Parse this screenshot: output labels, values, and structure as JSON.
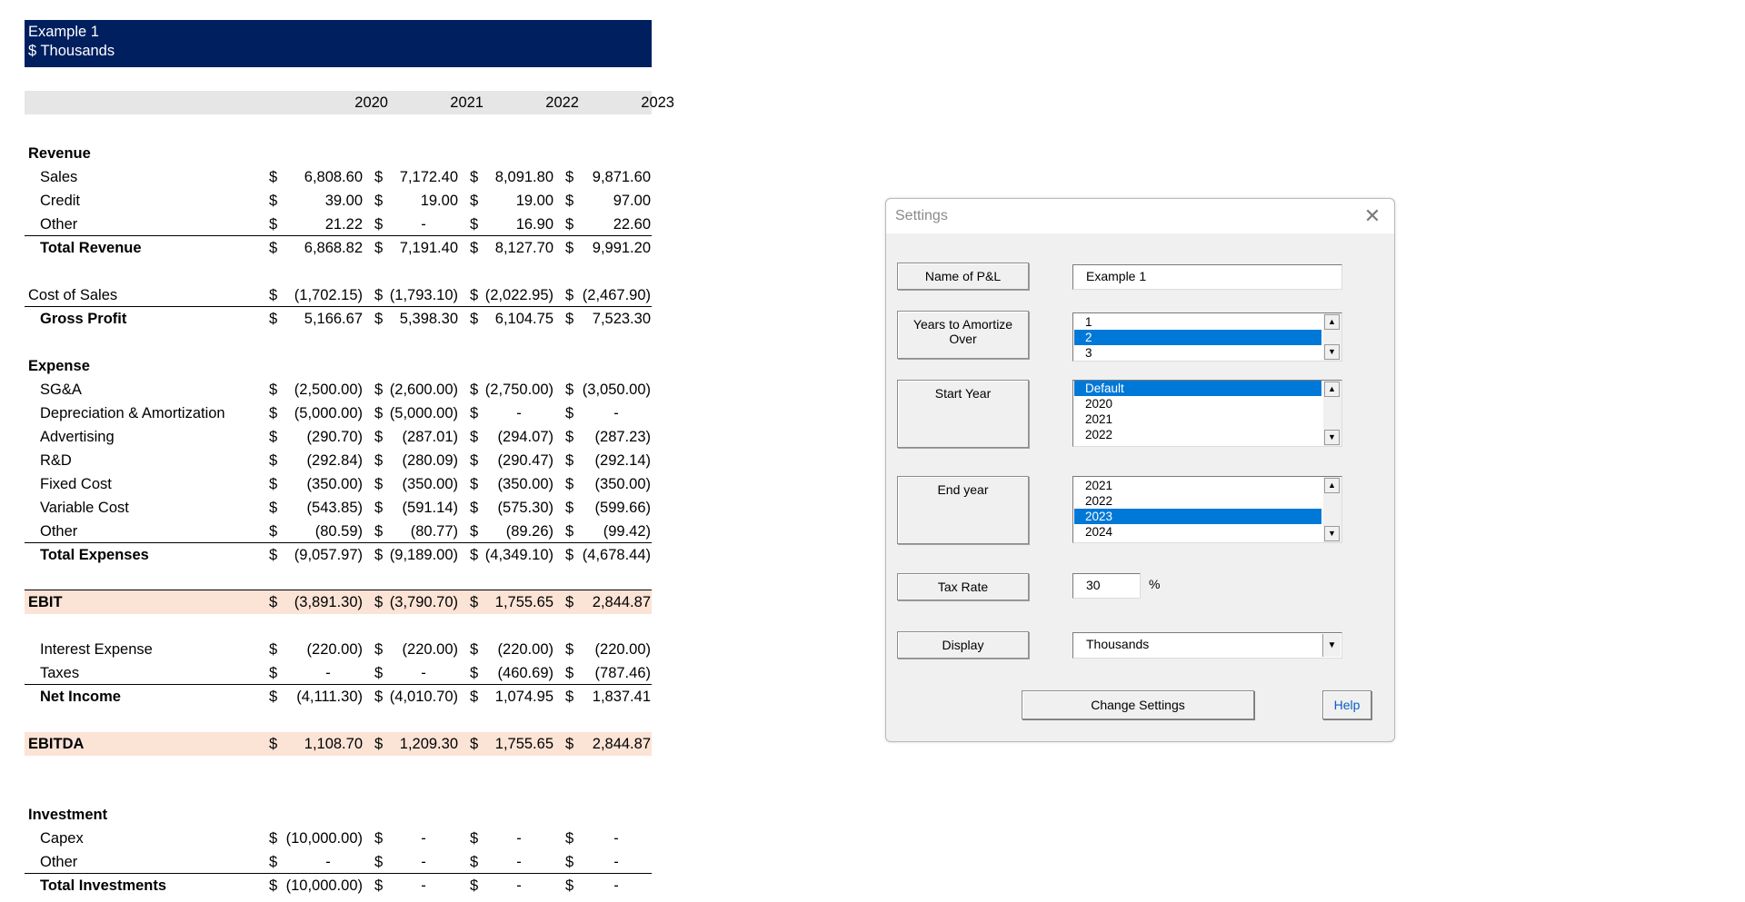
{
  "sheet": {
    "header": {
      "line1": "Example 1",
      "line2": "$ Thousands"
    },
    "years": [
      "2020",
      "2021",
      "2022",
      "2023"
    ],
    "sections": {
      "revenue": "Revenue",
      "expense": "Expense",
      "investment": "Investment"
    },
    "rows": {
      "sales": {
        "label": "Sales",
        "v": [
          "6,808.60",
          "7,172.40",
          "8,091.80",
          "9,871.60"
        ]
      },
      "credit": {
        "label": "Credit",
        "v": [
          "39.00",
          "19.00",
          "19.00",
          "97.00"
        ]
      },
      "other_rev": {
        "label": "Other",
        "v": [
          "21.22",
          "-",
          "16.90",
          "22.60"
        ]
      },
      "total_revenue": {
        "label": "Total Revenue",
        "v": [
          "6,868.82",
          "7,191.40",
          "8,127.70",
          "9,991.20"
        ]
      },
      "cost_of_sales": {
        "label": "Cost of Sales",
        "v": [
          "(1,702.15)",
          "(1,793.10)",
          "(2,022.95)",
          "(2,467.90)"
        ]
      },
      "gross_profit": {
        "label": "Gross Profit",
        "v": [
          "5,166.67",
          "5,398.30",
          "6,104.75",
          "7,523.30"
        ]
      },
      "sga": {
        "label": "SG&A",
        "v": [
          "(2,500.00)",
          "(2,600.00)",
          "(2,750.00)",
          "(3,050.00)"
        ]
      },
      "dep_amort": {
        "label": "Depreciation & Amortization",
        "v": [
          "(5,000.00)",
          "(5,000.00)",
          "-",
          "-"
        ]
      },
      "advertising": {
        "label": "Advertising",
        "v": [
          "(290.70)",
          "(287.01)",
          "(294.07)",
          "(287.23)"
        ]
      },
      "rnd": {
        "label": "R&D",
        "v": [
          "(292.84)",
          "(280.09)",
          "(290.47)",
          "(292.14)"
        ]
      },
      "fixed_cost": {
        "label": "Fixed Cost",
        "v": [
          "(350.00)",
          "(350.00)",
          "(350.00)",
          "(350.00)"
        ]
      },
      "variable_cost": {
        "label": "Variable Cost",
        "v": [
          "(543.85)",
          "(591.14)",
          "(575.30)",
          "(599.66)"
        ]
      },
      "other_exp": {
        "label": "Other",
        "v": [
          "(80.59)",
          "(80.77)",
          "(89.26)",
          "(99.42)"
        ]
      },
      "total_expenses": {
        "label": "Total Expenses",
        "v": [
          "(9,057.97)",
          "(9,189.00)",
          "(4,349.10)",
          "(4,678.44)"
        ]
      },
      "ebit": {
        "label": "EBIT",
        "v": [
          "(3,891.30)",
          "(3,790.70)",
          "1,755.65",
          "2,844.87"
        ]
      },
      "interest": {
        "label": "Interest Expense",
        "v": [
          "(220.00)",
          "(220.00)",
          "(220.00)",
          "(220.00)"
        ]
      },
      "taxes": {
        "label": "Taxes",
        "v": [
          "-",
          "-",
          "(460.69)",
          "(787.46)"
        ]
      },
      "net_income": {
        "label": "Net Income",
        "v": [
          "(4,111.30)",
          "(4,010.70)",
          "1,074.95",
          "1,837.41"
        ]
      },
      "ebitda": {
        "label": "EBITDA",
        "v": [
          "1,108.70",
          "1,209.30",
          "1,755.65",
          "2,844.87"
        ]
      },
      "capex": {
        "label": "Capex",
        "v": [
          "(10,000.00)",
          "-",
          "-",
          "-"
        ]
      },
      "other_inv": {
        "label": "Other",
        "v": [
          "-",
          "-",
          "-",
          "-"
        ]
      },
      "total_investments": {
        "label": "Total Investments",
        "v": [
          "(10,000.00)",
          "-",
          "-",
          "-"
        ]
      }
    },
    "currency_symbol": "$"
  },
  "dialog": {
    "title": "Settings",
    "close_glyph": "✕",
    "labels": {
      "name": "Name of P&L",
      "years": "Years to Amortize Over",
      "start": "Start Year",
      "end": "End year",
      "tax": "Tax Rate",
      "display": "Display"
    },
    "name_value": "Example 1",
    "years_list": {
      "items": [
        "1",
        "2",
        "3"
      ],
      "selected": "2"
    },
    "start_list": {
      "items": [
        "Default",
        "2020",
        "2021",
        "2022"
      ],
      "selected": "Default"
    },
    "end_list": {
      "items": [
        "2021",
        "2022",
        "2023",
        "2024"
      ],
      "selected": "2023"
    },
    "tax_value": "30",
    "tax_unit": "%",
    "display_value": "Thousands",
    "buttons": {
      "change": "Change Settings",
      "help": "Help"
    },
    "icons": {
      "scroll_up": "scroll-up-arrow-icon",
      "scroll_down": "scroll-down-arrow-icon",
      "combo": "dropdown-arrow-icon"
    },
    "colors": {
      "selection": "#0078d7",
      "header_band": "#001f5f",
      "highlight_row": "#fbe3d6",
      "help_link": "#0a5ec9"
    }
  }
}
